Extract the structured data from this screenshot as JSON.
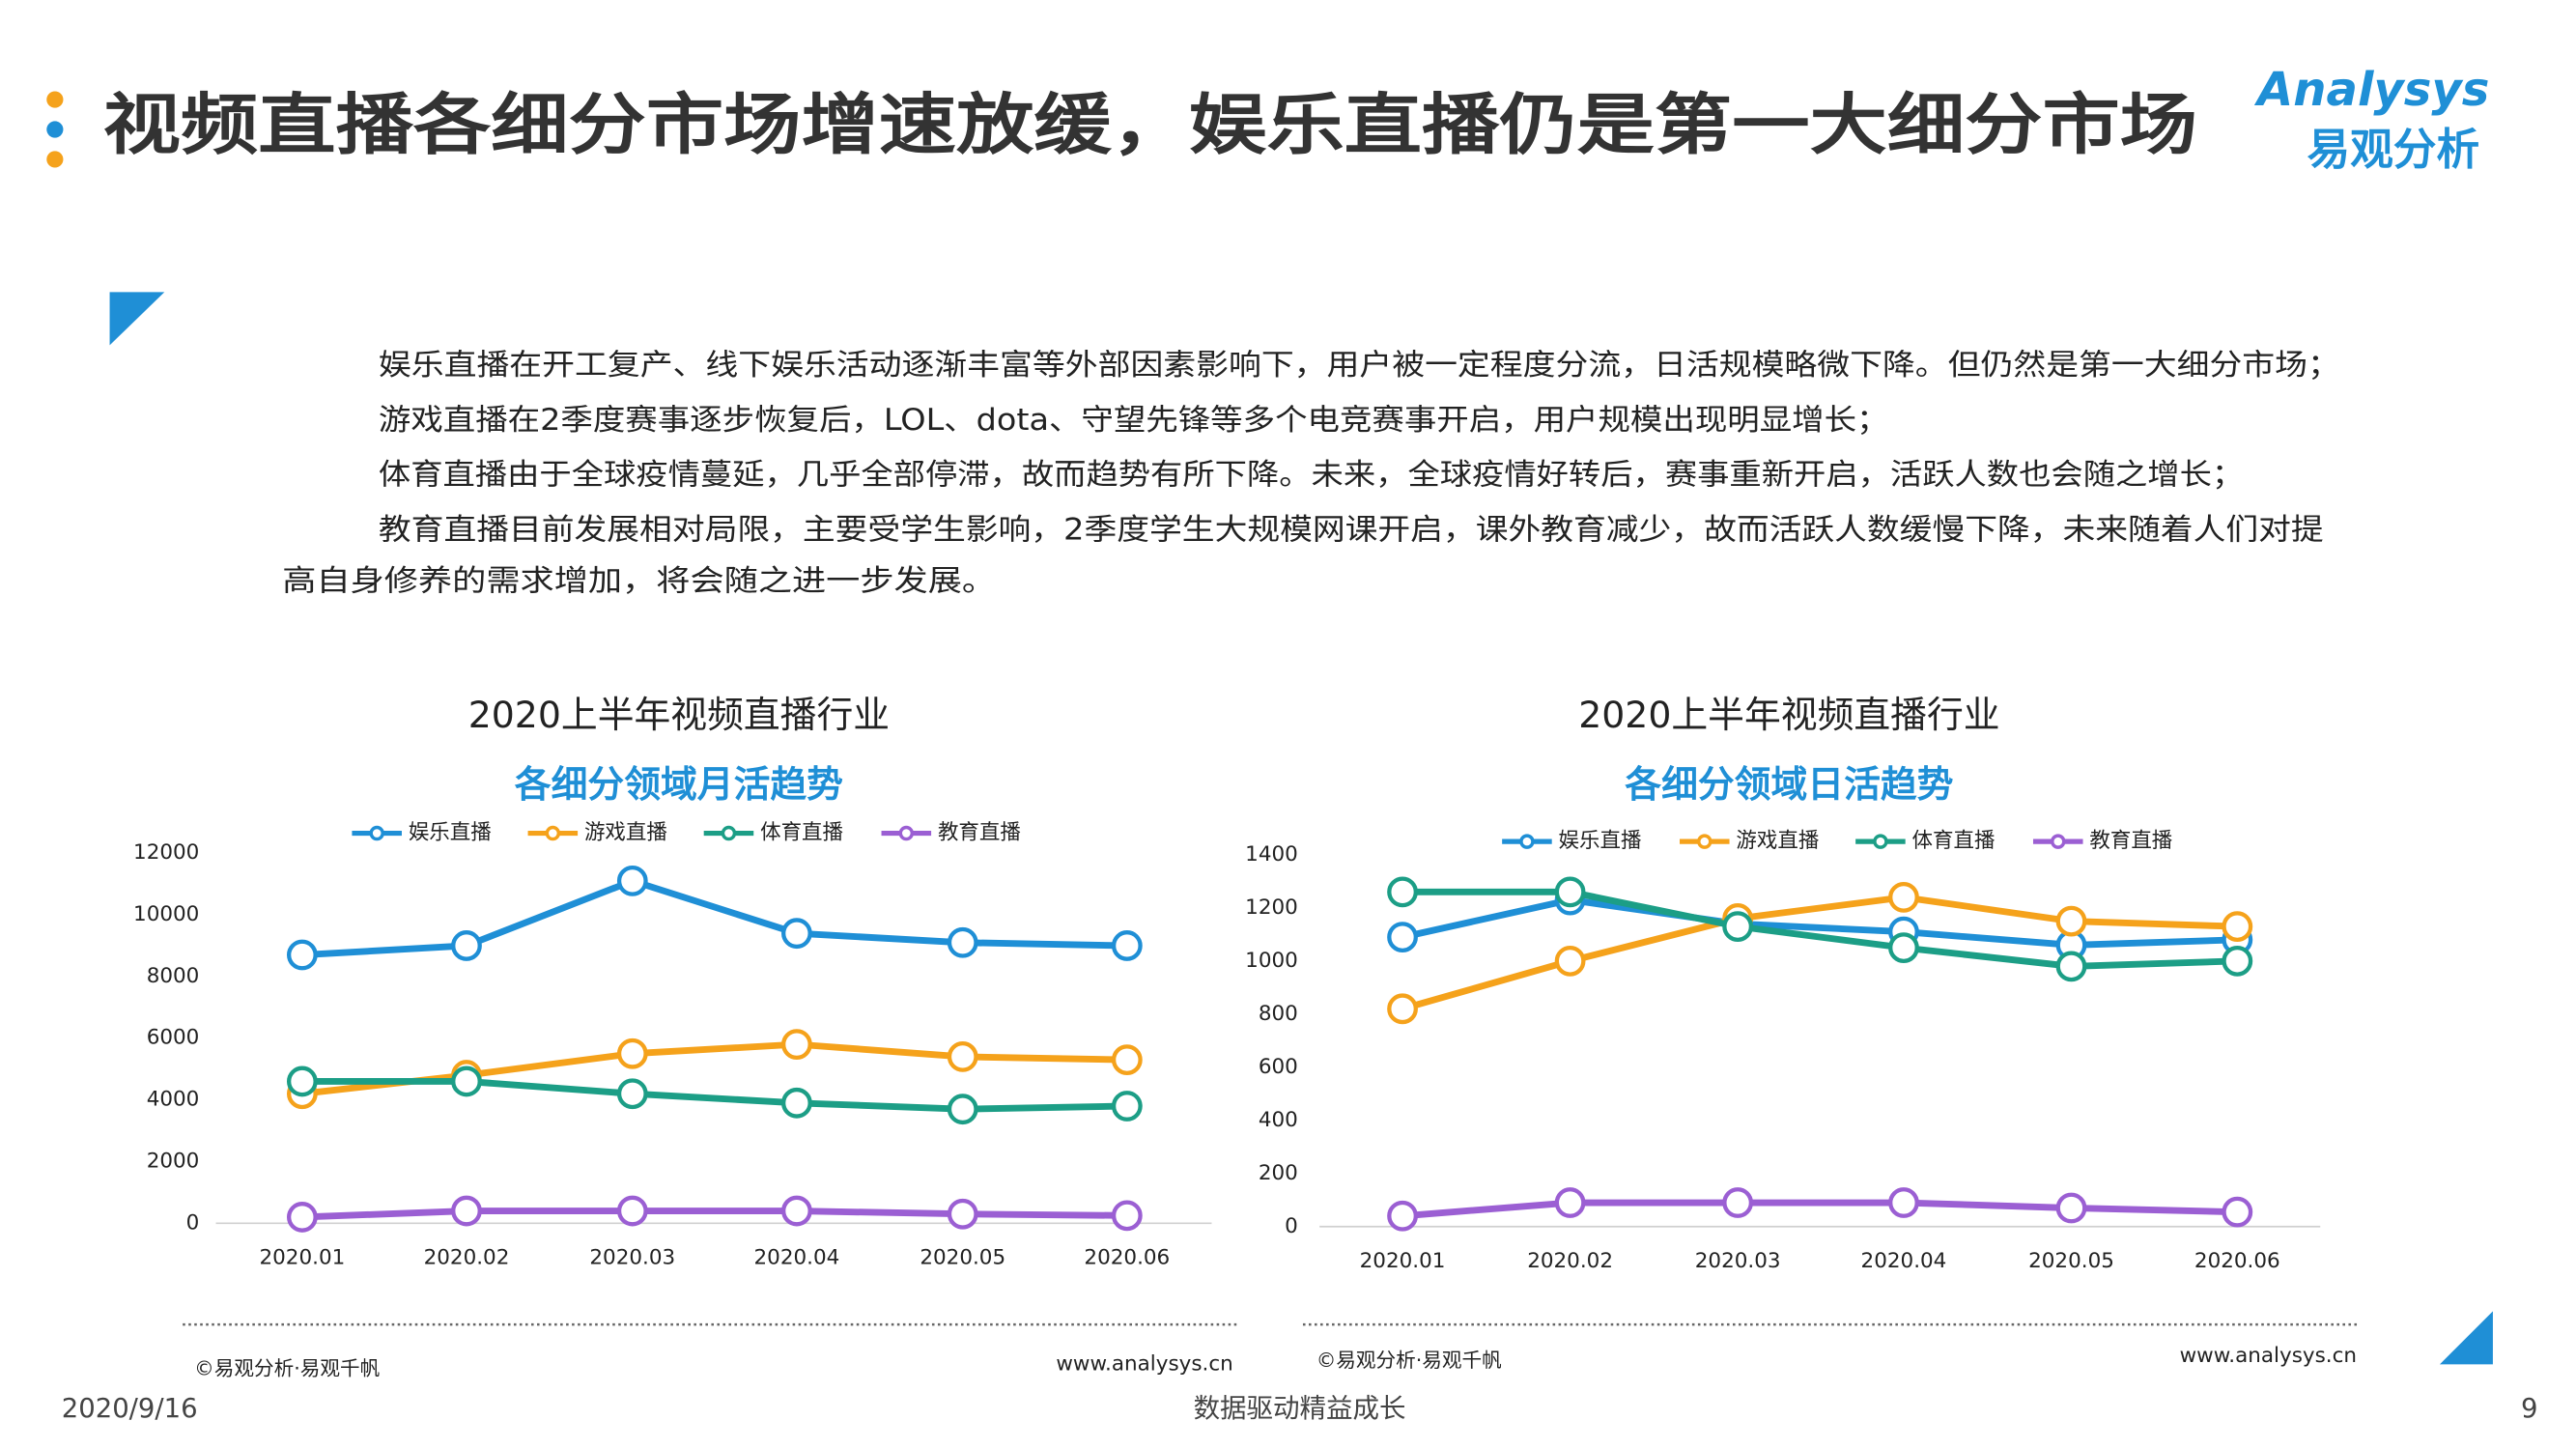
{
  "header": {
    "title": "视频直播各细分市场增速放缓，娱乐直播仍是第一大细分市场",
    "logo_en": "Analysys",
    "logo_cn": "易观分析"
  },
  "body_lines": [
    "娱乐直播在开工复产、线下娱乐活动逐渐丰富等外部因素影响下，用户被一定程度分流，日活规模略微下降。但仍然是第一大细分市场；",
    "游戏直播在2季度赛事逐步恢复后，LOL、dota、守望先锋等多个电竞赛事开启，用户规模出现明显增长；",
    "体育直播由于全球疫情蔓延，几乎全部停滞，故而趋势有所下降。未来，全球疫情好转后，赛事重新开启，活跃人数也会随之增长；",
    "教育直播目前发展相对局限，主要受学生影响，2季度学生大规模网课开启，课外教育减少，故而活跃人数缓慢下降，未来随着人们对提",
    "高自身修养的需求增加，将会随之进一步发展。"
  ],
  "chart_data": [
    {
      "type": "line",
      "title": "2020上半年视频直播行业",
      "subtitle": "各细分领域月活趋势",
      "categories": [
        "2020.01",
        "2020.02",
        "2020.03",
        "2020.04",
        "2020.05",
        "2020.06"
      ],
      "series": [
        {
          "name": "娱乐直播",
          "color": "#1f8fd6",
          "values": [
            8700,
            9000,
            11100,
            9400,
            9100,
            9000
          ]
        },
        {
          "name": "游戏直播",
          "color": "#f5a21b",
          "values": [
            4200,
            4800,
            5500,
            5800,
            5400,
            5300
          ]
        },
        {
          "name": "体育直播",
          "color": "#1c9e86",
          "values": [
            4600,
            4600,
            4200,
            3900,
            3700,
            3800
          ]
        },
        {
          "name": "教育直播",
          "color": "#9b5fd3",
          "values": [
            200,
            400,
            400,
            400,
            300,
            250
          ]
        }
      ],
      "ylim": [
        0,
        12000
      ],
      "yticks": [
        0,
        2000,
        4000,
        6000,
        8000,
        10000,
        12000
      ],
      "legend": "top",
      "source": "©易观分析·易观千帆",
      "website": "www.analysys.cn"
    },
    {
      "type": "line",
      "title": "2020上半年视频直播行业",
      "subtitle": "各细分领域日活趋势",
      "categories": [
        "2020.01",
        "2020.02",
        "2020.03",
        "2020.04",
        "2020.05",
        "2020.06"
      ],
      "series": [
        {
          "name": "娱乐直播",
          "color": "#1f8fd6",
          "values": [
            1090,
            1230,
            1140,
            1110,
            1060,
            1080
          ]
        },
        {
          "name": "游戏直播",
          "color": "#f5a21b",
          "values": [
            820,
            1000,
            1160,
            1240,
            1150,
            1130
          ]
        },
        {
          "name": "体育直播",
          "color": "#1c9e86",
          "values": [
            1260,
            1260,
            1130,
            1050,
            980,
            1000
          ]
        },
        {
          "name": "教育直播",
          "color": "#9b5fd3",
          "values": [
            40,
            90,
            90,
            90,
            70,
            55
          ]
        }
      ],
      "ylim": [
        0,
        1400
      ],
      "yticks": [
        0,
        200,
        400,
        600,
        800,
        1000,
        1200,
        1400
      ],
      "legend": "top",
      "source": "©易观分析·易观千帆",
      "website": "www.analysys.cn"
    }
  ],
  "footer": {
    "date": "2020/9/16",
    "slogan": "数据驱动精益成长",
    "page_number": "9"
  }
}
